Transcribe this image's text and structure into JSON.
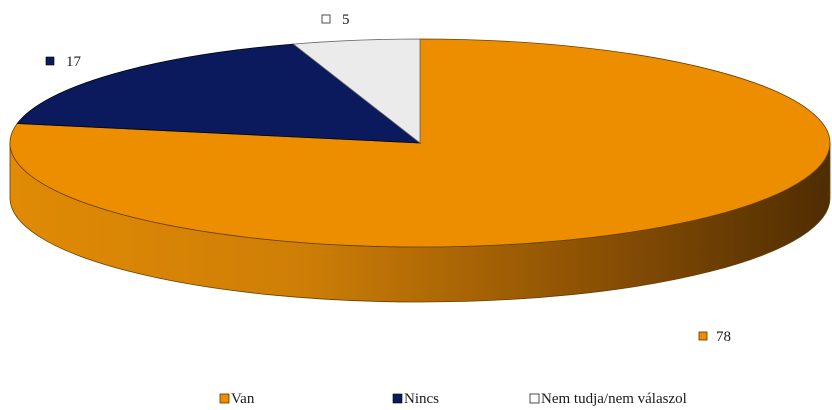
{
  "chart_data": {
    "type": "pie",
    "style": "3d",
    "title": "",
    "categories": [
      "Van",
      "Nincs",
      "Nem tudja/nem válaszol"
    ],
    "values": [
      78,
      17,
      5
    ],
    "colors": [
      "#ED8E00",
      "#0B1A5C",
      "#EBEBEB"
    ],
    "data_labels": [
      "78",
      "17",
      "5"
    ],
    "legend": {
      "placement": "bottom"
    }
  }
}
